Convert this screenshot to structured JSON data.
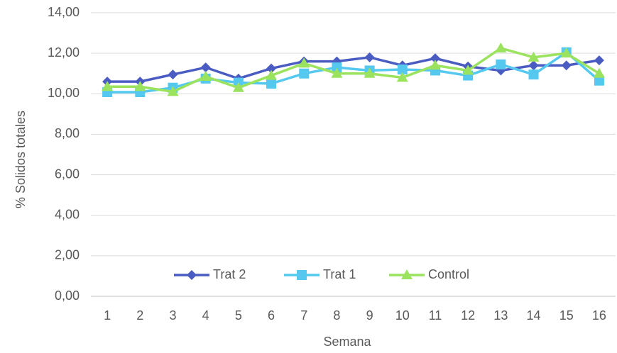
{
  "chart_data": {
    "type": "line",
    "x_label": "Semana",
    "y_label": "% Solidos totales",
    "categories": [
      "1",
      "2",
      "3",
      "4",
      "5",
      "6",
      "7",
      "8",
      "9",
      "10",
      "11",
      "12",
      "13",
      "14",
      "15",
      "16"
    ],
    "series": [
      {
        "name": "Trat 2",
        "color": "#4a5cc2",
        "marker": "diamond",
        "values": [
          10.6,
          10.6,
          10.95,
          11.3,
          10.75,
          11.25,
          11.6,
          11.6,
          11.8,
          11.4,
          11.75,
          11.35,
          11.15,
          11.4,
          11.4,
          11.65
        ]
      },
      {
        "name": "Trat 1",
        "color": "#55c8f0",
        "marker": "square",
        "values": [
          10.08,
          10.08,
          10.3,
          10.75,
          10.55,
          10.5,
          11.0,
          11.3,
          11.15,
          11.2,
          11.15,
          10.9,
          11.45,
          10.95,
          12.05,
          10.65
        ]
      },
      {
        "name": "Control",
        "color": "#9be35e",
        "marker": "triangle",
        "values": [
          10.35,
          10.35,
          10.1,
          10.85,
          10.3,
          10.9,
          11.5,
          11.0,
          11.0,
          10.8,
          11.4,
          11.15,
          12.25,
          11.8,
          12.0,
          11.0
        ]
      }
    ],
    "ylim": [
      0,
      14
    ],
    "yticks": [
      {
        "value": 0,
        "label": "0,00"
      },
      {
        "value": 2,
        "label": "2,00"
      },
      {
        "value": 4,
        "label": "4,00"
      },
      {
        "value": 6,
        "label": "6,00"
      },
      {
        "value": 8,
        "label": "8,00"
      },
      {
        "value": 10,
        "label": "10,00"
      },
      {
        "value": 12,
        "label": "12,00"
      },
      {
        "value": 14,
        "label": "14,00"
      }
    ],
    "grid": true,
    "legend": "bottom"
  }
}
